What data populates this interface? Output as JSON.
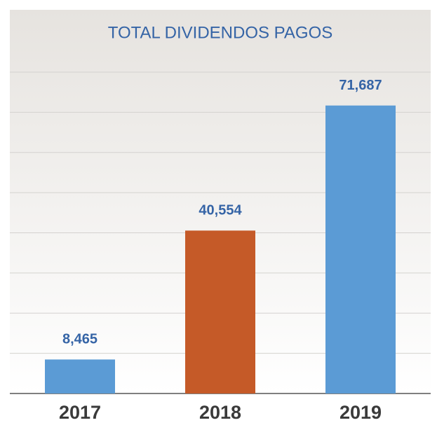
{
  "chart_data": {
    "type": "bar",
    "title": "TOTAL DIVIDENDOS PAGOS",
    "categories": [
      "2017",
      "2018",
      "2019"
    ],
    "values": [
      8465,
      40554,
      71687
    ],
    "value_labels": [
      "8,465",
      "40,554",
      "71,687"
    ],
    "colors": [
      "#5b9bd5",
      "#c55a28",
      "#5b9bd5"
    ],
    "ylim": [
      0,
      80000
    ],
    "yticks": [
      0,
      10000,
      20000,
      30000,
      40000,
      50000,
      60000,
      70000,
      80000
    ],
    "grid": true
  }
}
